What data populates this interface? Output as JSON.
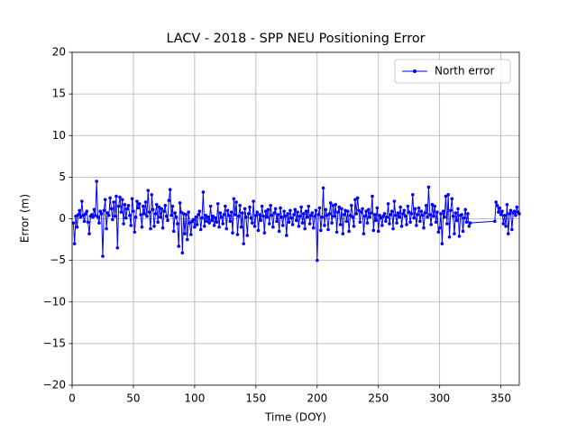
{
  "chart_data": {
    "type": "line",
    "title": "LACV - 2018 - SPP NEU Positioning Error",
    "xlabel": "Time (DOY)",
    "ylabel": "Error (m)",
    "xlim": [
      0,
      365
    ],
    "ylim": [
      -20,
      20
    ],
    "xticks": [
      0,
      50,
      100,
      150,
      200,
      250,
      300,
      350
    ],
    "yticks": [
      {
        "value": -20,
        "label": "−20"
      },
      {
        "value": -15,
        "label": "−15"
      },
      {
        "value": -10,
        "label": "−10"
      },
      {
        "value": -5,
        "label": "−5"
      },
      0,
      5,
      10,
      15,
      20
    ],
    "grid": true,
    "legend": "upper right",
    "x": [
      1,
      2,
      3,
      4,
      5,
      6,
      7,
      8,
      9,
      10,
      11,
      12,
      13,
      14,
      15,
      16,
      17,
      18,
      19,
      20,
      21,
      22,
      23,
      24,
      25,
      26,
      27,
      28,
      29,
      30,
      31,
      32,
      33,
      34,
      35,
      36,
      37,
      38,
      39,
      40,
      41,
      42,
      43,
      44,
      45,
      46,
      47,
      48,
      49,
      50,
      51,
      52,
      53,
      54,
      55,
      56,
      57,
      58,
      59,
      60,
      61,
      62,
      63,
      64,
      65,
      66,
      67,
      68,
      69,
      70,
      71,
      72,
      73,
      74,
      75,
      76,
      77,
      78,
      79,
      80,
      81,
      82,
      83,
      84,
      85,
      86,
      87,
      88,
      89,
      90,
      91,
      92,
      93,
      94,
      95,
      96,
      97,
      98,
      99,
      100,
      101,
      102,
      103,
      104,
      105,
      106,
      107,
      108,
      109,
      110,
      111,
      112,
      113,
      114,
      115,
      116,
      117,
      118,
      119,
      120,
      121,
      122,
      123,
      124,
      125,
      126,
      127,
      128,
      129,
      130,
      131,
      132,
      133,
      134,
      135,
      136,
      137,
      138,
      139,
      140,
      141,
      142,
      143,
      144,
      145,
      146,
      147,
      148,
      149,
      150,
      151,
      152,
      153,
      154,
      155,
      156,
      157,
      158,
      159,
      160,
      161,
      162,
      163,
      164,
      165,
      166,
      167,
      168,
      169,
      170,
      171,
      172,
      173,
      174,
      175,
      176,
      177,
      178,
      179,
      180,
      181,
      182,
      183,
      184,
      185,
      186,
      187,
      188,
      189,
      190,
      191,
      192,
      193,
      194,
      195,
      196,
      197,
      198,
      199,
      200,
      201,
      202,
      203,
      204,
      205,
      206,
      207,
      208,
      209,
      210,
      211,
      212,
      213,
      214,
      215,
      216,
      217,
      218,
      219,
      220,
      221,
      222,
      223,
      224,
      225,
      226,
      227,
      228,
      229,
      230,
      231,
      232,
      233,
      234,
      235,
      236,
      237,
      238,
      239,
      240,
      241,
      242,
      243,
      244,
      245,
      246,
      247,
      248,
      249,
      250,
      251,
      252,
      253,
      254,
      255,
      256,
      257,
      258,
      259,
      260,
      261,
      262,
      263,
      264,
      265,
      266,
      267,
      268,
      269,
      270,
      271,
      272,
      273,
      274,
      275,
      276,
      277,
      278,
      279,
      280,
      281,
      282,
      283,
      284,
      285,
      286,
      287,
      288,
      289,
      290,
      291,
      292,
      293,
      294,
      295,
      296,
      297,
      298,
      299,
      300,
      301,
      302,
      303,
      304,
      305,
      306,
      307,
      308,
      309,
      310,
      311,
      312,
      313,
      314,
      315,
      316,
      317,
      318,
      319,
      320,
      321,
      322,
      323,
      324,
      325,
      345,
      346,
      347,
      348,
      349,
      350,
      351,
      352,
      353,
      354,
      355,
      356,
      357,
      358,
      359,
      360,
      361,
      362,
      363,
      364,
      365
    ],
    "series": [
      {
        "name": "North error",
        "color": "#0000ff",
        "values": [
          -0.5,
          -3.0,
          0.3,
          -1.0,
          0.5,
          1.0,
          0.2,
          2.1,
          0.4,
          -0.3,
          0.6,
          0.9,
          -0.4,
          -1.8,
          0.3,
          0.5,
          0.2,
          1.1,
          0.4,
          4.5,
          0.2,
          -0.5,
          0.9,
          0.6,
          -4.5,
          1.0,
          2.3,
          -1.2,
          0.7,
          0.4,
          2.5,
          1.2,
          -0.1,
          2.0,
          0.3,
          2.7,
          -3.5,
          1.5,
          2.6,
          0.8,
          2.3,
          -0.6,
          1.7,
          0.1,
          1.2,
          1.6,
          0.4,
          -0.8,
          2.4,
          0.9,
          -1.6,
          0.2,
          2.1,
          1.3,
          1.8,
          0.5,
          -1.0,
          1.5,
          0.6,
          2.0,
          0.3,
          3.4,
          0.8,
          -1.2,
          2.9,
          1.1,
          -0.9,
          0.6,
          1.7,
          -0.4,
          1.4,
          0.2,
          1.2,
          -1.1,
          0.9,
          1.6,
          0.3,
          -0.2,
          2.2,
          3.5,
          0.4,
          1.5,
          -1.5,
          0.7,
          0.2,
          -0.6,
          -3.3,
          1.9,
          0.8,
          -4.1,
          0.6,
          -1.8,
          0.5,
          -2.5,
          0.8,
          -0.5,
          -1.9,
          -0.3,
          -0.1,
          -1.0,
          0.2,
          -0.7,
          0.5,
          0.9,
          -1.3,
          0.1,
          3.2,
          -0.9,
          0.4,
          -0.3,
          0.2,
          -0.5,
          1.5,
          -0.2,
          0.3,
          -0.8,
          0.1,
          -0.4,
          1.8,
          -1.0,
          0.7,
          0.2,
          -0.6,
          0.5,
          1.5,
          -1.2,
          1.0,
          0.4,
          -0.3,
          0.8,
          -1.7,
          2.4,
          0.5,
          2.0,
          -1.9,
          0.3,
          1.6,
          -1.0,
          0.7,
          -3.0,
          1.2,
          0.2,
          -2.0,
          0.6,
          1.4,
          0.1,
          -0.5,
          2.1,
          -0.9,
          0.4,
          0.8,
          -1.4,
          0.5,
          -0.2,
          1.5,
          0.3,
          -1.7,
          0.9,
          0.2,
          1.1,
          -0.6,
          1.6,
          0.4,
          -1.0,
          0.7,
          1.2,
          -0.3,
          0.5,
          -1.5,
          1.3,
          0.2,
          -0.8,
          0.9,
          0.3,
          -2.0,
          0.6,
          -0.4,
          1.0,
          0.1,
          -0.7,
          0.5,
          1.1,
          -0.2,
          0.8,
          -0.9,
          0.3,
          1.4,
          -0.5,
          0.6,
          -1.2,
          0.9,
          0.2,
          1.5,
          -0.6,
          0.4,
          0.7,
          -1.1,
          0.3,
          1.0,
          -5.0,
          0.5,
          1.3,
          -1.4,
          0.2,
          3.7,
          -0.8,
          1.1,
          0.4,
          -1.3,
          0.6,
          1.9,
          -0.5,
          1.6,
          0.3,
          1.7,
          -1.6,
          0.8,
          1.4,
          -0.7,
          1.2,
          -1.8,
          0.5,
          1.0,
          -0.3,
          0.9,
          -1.5,
          0.4,
          1.6,
          0.2,
          -0.9,
          2.3,
          0.6,
          2.5,
          1.0,
          -0.4,
          0.8,
          1.2,
          -1.8,
          0.3,
          0.9,
          -0.5,
          1.1,
          0.2,
          0.7,
          2.7,
          -1.4,
          0.5,
          -0.2,
          1.3,
          -1.5,
          0.4,
          0.1,
          -0.8,
          0.3,
          0.6,
          -0.3,
          0.2,
          1.8,
          -0.6,
          0.5,
          0.9,
          -1.2,
          2.1,
          0.4,
          -0.5,
          0.7,
          0.2,
          1.4,
          -0.9,
          0.6,
          1.0,
          0.3,
          -0.7,
          1.5,
          0.8,
          -0.4,
          0.6,
          2.9,
          0.1,
          1.2,
          -0.8,
          0.5,
          1.3,
          -0.3,
          0.9,
          0.4,
          -1.1,
          0.7,
          1.6,
          0.2,
          3.8,
          0.5,
          -0.7,
          1.7,
          0.3,
          1.5,
          -0.4,
          0.8,
          -1.6,
          -1.1,
          0.6,
          -3.0,
          0.9,
          0.2,
          2.7,
          -0.6,
          2.9,
          -2.2,
          1.0,
          2.4,
          0.3,
          -1.8,
          0.7,
          -0.2,
          1.2,
          -2.1,
          0.4,
          0.5,
          -1.5,
          0.1,
          1.1,
          -0.4,
          0.6,
          -0.9,
          -0.5,
          -0.3,
          2.0,
          1.6,
          0.8,
          1.3,
          0.5,
          0.9,
          -0.6,
          0.4,
          -0.9,
          1.7,
          -1.8,
          0.6,
          1.0,
          -1.3,
          0.7,
          0.9,
          0.4,
          1.4,
          0.8,
          0.6
        ]
      }
    ]
  }
}
